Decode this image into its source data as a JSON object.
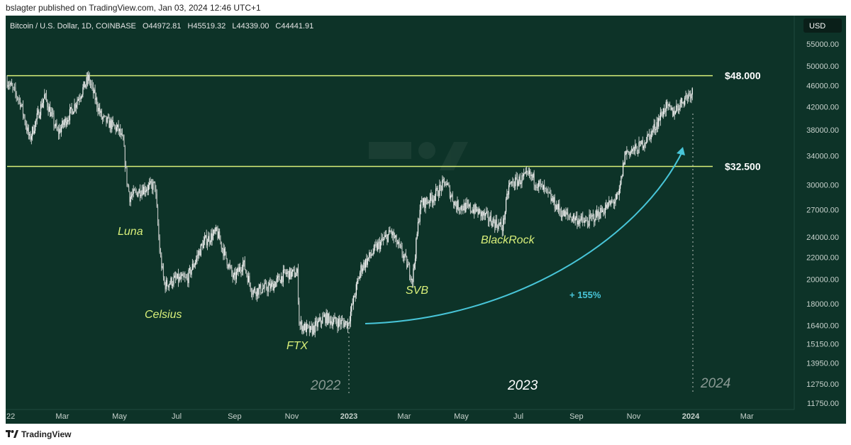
{
  "publisher_line": "bslagter published on TradingView.com, Jan 03, 2024 12:46 UTC+1",
  "symbol_info": "Bitcoin / U.S. Dollar, 1D, COINBASE",
  "ohlc": {
    "open": "O44972.81",
    "high": "H45519.32",
    "low": "L44339.00",
    "close": "C44441.91"
  },
  "currency_badge": "USD",
  "branding": "TradingView",
  "chart_data": {
    "type": "candlestick",
    "scale": "log",
    "ylim": [
      11200,
      63000
    ],
    "x_ticks": [
      "22",
      "Mar",
      "May",
      "Jul",
      "Sep",
      "Nov",
      "2023",
      "Mar",
      "May",
      "Jul",
      "Sep",
      "Nov",
      "2024",
      "Mar"
    ],
    "y_ticks": [
      55000,
      50000,
      46000,
      42000,
      38000,
      34000,
      30000,
      27000,
      24000,
      22000,
      20000,
      18000,
      16400,
      15150,
      13950,
      12750,
      11750
    ],
    "y_tick_labels": [
      "55000.00",
      "50000.00",
      "46000.00",
      "42000.00",
      "38000.00",
      "34000.00",
      "30000.00",
      "27000.00",
      "24000.00",
      "22000.00",
      "20000.00",
      "18000.00",
      "16400.00",
      "15150.00",
      "13950.00",
      "12750.00",
      "11750.00"
    ],
    "horizontal_levels": [
      {
        "value": 48000,
        "label": "$48.000"
      },
      {
        "value": 32500,
        "label": "$32.500"
      }
    ],
    "annotations": [
      "Luna",
      "Celsius",
      "FTX",
      "SVB",
      "BlackRock"
    ],
    "gain_label": "+ 155%",
    "year_labels": [
      "2022",
      "2023",
      "2024"
    ],
    "series": [
      {
        "dates": [
          "2022-01-01",
          "2022-01-15",
          "2022-01-25",
          "2022-02-10",
          "2022-02-24",
          "2022-03-10",
          "2022-03-29",
          "2022-04-12",
          "2022-04-30",
          "2022-05-05",
          "2022-05-09",
          "2022-05-12",
          "2022-05-25",
          "2022-06-08",
          "2022-06-13",
          "2022-06-18",
          "2022-06-30",
          "2022-07-12",
          "2022-07-30",
          "2022-08-13",
          "2022-08-31",
          "2022-09-10",
          "2022-09-20",
          "2022-10-10",
          "2022-10-25",
          "2022-11-07",
          "2022-11-09",
          "2022-11-21",
          "2022-12-06",
          "2022-12-16",
          "2022-12-31",
          "2023-01-14",
          "2023-01-31",
          "2023-02-15",
          "2023-03-01",
          "2023-03-10",
          "2023-03-18",
          "2023-04-01",
          "2023-04-14",
          "2023-04-25",
          "2023-05-15",
          "2023-06-14",
          "2023-06-21",
          "2023-07-13",
          "2023-07-31",
          "2023-08-17",
          "2023-08-31",
          "2023-09-11",
          "2023-09-30",
          "2023-10-16",
          "2023-10-23",
          "2023-11-05",
          "2023-11-20",
          "2023-12-05",
          "2023-12-13",
          "2023-12-25",
          "2024-01-03"
        ],
        "values": [
          47000,
          43000,
          36500,
          44000,
          37500,
          41000,
          47500,
          40000,
          38000,
          36000,
          30500,
          28500,
          29500,
          30000,
          22500,
          19500,
          20000,
          20000,
          23500,
          24500,
          20000,
          21500,
          19000,
          19400,
          20500,
          20500,
          16500,
          16000,
          17000,
          16700,
          16550,
          21000,
          23000,
          24500,
          22000,
          20000,
          27500,
          28500,
          30400,
          27500,
          27000,
          25000,
          30000,
          31300,
          29000,
          26500,
          26000,
          25500,
          27000,
          28500,
          34500,
          35000,
          37500,
          42000,
          41000,
          43500,
          45000
        ]
      }
    ]
  }
}
